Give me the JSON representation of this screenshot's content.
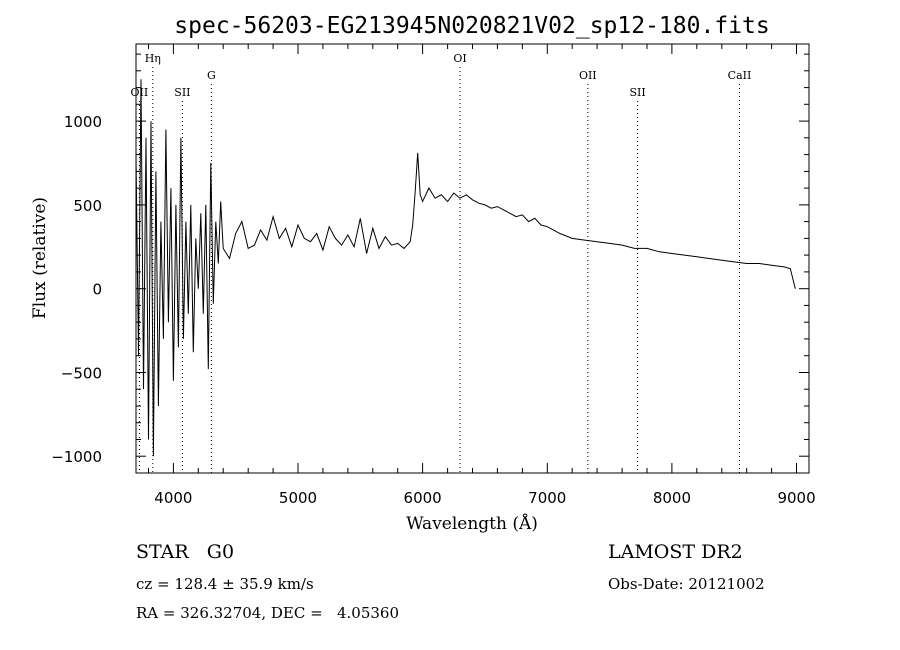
{
  "chart_data": {
    "type": "line",
    "title": "spec-56203-EG213945N020821V02_sp12-180.fits",
    "xlabel": "Wavelength (Å)",
    "ylabel": "Flux (relative)",
    "xlim": [
      3700,
      9100
    ],
    "ylim": [
      -1100,
      1460
    ],
    "xticks": [
      4000,
      5000,
      6000,
      7000,
      8000,
      9000
    ],
    "yticks": [
      -1000,
      -500,
      0,
      500,
      1000
    ],
    "xtick_labels": [
      "4000",
      "5000",
      "6000",
      "7000",
      "8000",
      "9000"
    ],
    "ytick_labels": [
      "−1000",
      "−500",
      "0",
      "500",
      "1000"
    ],
    "grid": false,
    "lines": [
      {
        "label": "Hη",
        "wavelength": 3835,
        "row": 0
      },
      {
        "label": "OII",
        "wavelength": 3727,
        "row": 2
      },
      {
        "label": "SII",
        "wavelength": 4072,
        "row": 2
      },
      {
        "label": "G",
        "wavelength": 4305,
        "row": 1
      },
      {
        "label": "OI",
        "wavelength": 6300,
        "row": 0
      },
      {
        "label": "OII",
        "wavelength": 7325,
        "row": 1
      },
      {
        "label": "SII",
        "wavelength": 7725,
        "row": 2
      },
      {
        "label": "CaII",
        "wavelength": 8542,
        "row": 1
      }
    ],
    "series": [
      {
        "x": [
          3700,
          3720,
          3740,
          3760,
          3780,
          3800,
          3820,
          3840,
          3860,
          3880,
          3900,
          3920,
          3940,
          3960,
          3980,
          4000,
          4020,
          4040,
          4060,
          4080,
          4100,
          4120,
          4140,
          4160,
          4180,
          4200,
          4220,
          4240,
          4260,
          4280,
          4300,
          4320,
          4340,
          4360,
          4380,
          4400,
          4450,
          4500,
          4550,
          4600,
          4650,
          4700,
          4750,
          4800,
          4850,
          4900,
          4950,
          5000,
          5050,
          5100,
          5150,
          5200,
          5250,
          5300,
          5350,
          5400,
          5450,
          5500,
          5550,
          5600,
          5650,
          5700,
          5750,
          5800,
          5850,
          5900,
          5920,
          5940,
          5960,
          5980,
          6000,
          6050,
          6100,
          6150,
          6200,
          6250,
          6300,
          6350,
          6400,
          6450,
          6500,
          6550,
          6600,
          6650,
          6700,
          6750,
          6800,
          6850,
          6900,
          6950,
          7000,
          7100,
          7200,
          7300,
          7400,
          7500,
          7600,
          7700,
          7800,
          7900,
          8000,
          8100,
          8200,
          8300,
          8400,
          8500,
          8600,
          8700,
          8800,
          8900,
          8950,
          8970,
          8990
        ],
        "y": [
          800,
          -400,
          1250,
          -600,
          900,
          -900,
          1000,
          -1000,
          700,
          -700,
          400,
          -300,
          950,
          -200,
          600,
          -550,
          500,
          -350,
          900,
          -300,
          400,
          -150,
          500,
          -380,
          300,
          0,
          450,
          -150,
          500,
          -480,
          750,
          -90,
          400,
          150,
          520,
          240,
          180,
          330,
          400,
          240,
          260,
          350,
          290,
          430,
          300,
          360,
          250,
          380,
          300,
          280,
          330,
          230,
          370,
          300,
          260,
          320,
          250,
          420,
          210,
          360,
          240,
          310,
          260,
          270,
          240,
          280,
          380,
          580,
          810,
          560,
          520,
          600,
          540,
          560,
          520,
          570,
          540,
          560,
          530,
          510,
          500,
          480,
          490,
          470,
          450,
          430,
          440,
          400,
          420,
          380,
          370,
          330,
          300,
          290,
          280,
          270,
          260,
          240,
          240,
          220,
          210,
          200,
          190,
          180,
          170,
          160,
          150,
          150,
          140,
          130,
          120,
          60,
          0
        ]
      }
    ]
  },
  "info": {
    "class_line": "STAR   G0",
    "survey": "LAMOST DR2",
    "cz": "cz = 128.4 ± 35.9 km/s",
    "obs_date": "Obs-Date: 20121002",
    "radec": "RA = 326.32704, DEC =   4.05360"
  }
}
